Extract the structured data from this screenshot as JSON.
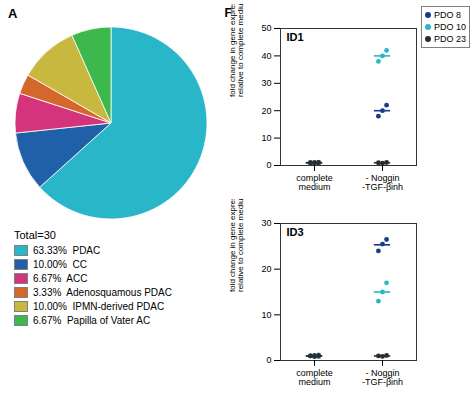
{
  "chart_data": [
    {
      "type": "pie",
      "title": "A",
      "categories": [
        "63.33%  PDAC",
        "10.00%  CC",
        "6.67%  ACC",
        "3.33%  Adenosquamous PDAC",
        "10.00%  IPMN-derived PDAC",
        "6.67%  Papilla of Vater AC"
      ],
      "values": [
        63.33,
        10.0,
        6.67,
        3.33,
        10.0,
        6.67
      ],
      "colors": [
        "#29b6c8",
        "#2060a8",
        "#d4347c",
        "#d4682c",
        "#c8b840",
        "#3cb84c"
      ],
      "legend": "bottom",
      "annotations": [
        "Total=30"
      ]
    },
    {
      "type": "scatter",
      "title": "ID1",
      "annotations": [
        "F"
      ],
      "ylabel": "fold change in gene expression\nrelative to complete medium",
      "categories": [
        "complete\nmedium",
        "- Noggin\n-TGF-βinh"
      ],
      "series": [
        {
          "name": "PDO 8",
          "color": "#1a3a8a",
          "values": [
            [
              1.0,
              1.1,
              0.9
            ],
            [
              18.0,
              20.0,
              22.0
            ]
          ],
          "means": [
            1.0,
            20.0
          ]
        },
        {
          "name": "PDO 10",
          "color": "#29b6c8",
          "values": [
            [
              1.0,
              0.8,
              1.2
            ],
            [
              38.0,
              40.0,
              42.0
            ]
          ],
          "means": [
            1.0,
            40.0
          ]
        },
        {
          "name": "PDO 23",
          "color": "#2d2d2d",
          "values": [
            [
              1.0,
              0.9,
              1.1
            ],
            [
              1.0,
              0.9,
              1.1
            ]
          ],
          "means": [
            1.0,
            1.0
          ]
        }
      ],
      "ylim": [
        0,
        50
      ],
      "yticks": [
        0,
        10,
        20,
        30,
        40,
        50
      ],
      "legend": "upper right",
      "grid": false
    },
    {
      "type": "scatter",
      "title": "ID3",
      "ylabel": "fold change in gene expression\nrelative to complete medium",
      "categories": [
        "complete\nmedium",
        "- Noggin\n-TGF-βinh"
      ],
      "series": [
        {
          "name": "PDO 8",
          "color": "#1a3a8a",
          "values": [
            [
              1.0,
              1.1,
              0.9
            ],
            [
              24.0,
              25.5,
              26.5
            ]
          ],
          "means": [
            1.0,
            25.333333333333332
          ]
        },
        {
          "name": "PDO 10",
          "color": "#29b6c8",
          "values": [
            [
              1.0,
              0.8,
              1.2
            ],
            [
              13.0,
              15.0,
              17.0
            ]
          ],
          "means": [
            1.0,
            15.0
          ]
        },
        {
          "name": "PDO 23",
          "color": "#2d2d2d",
          "values": [
            [
              1.0,
              0.9,
              1.1
            ],
            [
              1.0,
              0.9,
              1.1
            ]
          ],
          "means": [
            1.0,
            1.0
          ]
        }
      ],
      "ylim": [
        0,
        30
      ],
      "yticks": [
        0,
        10,
        20,
        30
      ],
      "legend": false,
      "grid": false
    }
  ]
}
